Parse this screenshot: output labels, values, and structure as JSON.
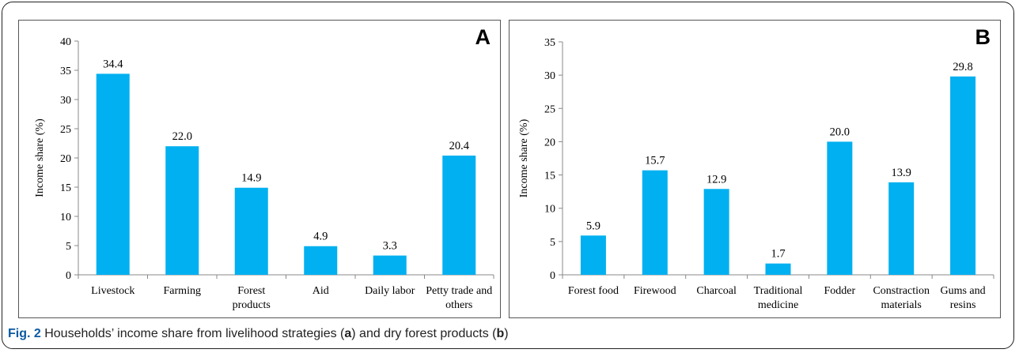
{
  "caption": {
    "label": "Fig. 2",
    "text_1": " Households’ income share from livelihood strategies (",
    "letter_a": "a",
    "text_2": ") and dry forest products (",
    "letter_b": "b",
    "text_3": ")"
  },
  "chart_data": [
    {
      "type": "bar",
      "panel_label": "A",
      "ylabel": "Income share (%)",
      "ylim": [
        0,
        40
      ],
      "yticks": [
        0,
        5,
        10,
        15,
        20,
        25,
        30,
        35,
        40
      ],
      "categories": [
        [
          "Livestock"
        ],
        [
          "Farming"
        ],
        [
          "Forest",
          "products"
        ],
        [
          "Aid"
        ],
        [
          "Daily labor"
        ],
        [
          "Petty trade and",
          "others"
        ]
      ],
      "values": [
        34.4,
        22.0,
        14.9,
        4.9,
        3.3,
        20.4
      ],
      "value_labels": [
        "34.4",
        "22.0",
        "14.9",
        "4.9",
        "3.3",
        "20.4"
      ],
      "bar_color": "#00b0f0"
    },
    {
      "type": "bar",
      "panel_label": "B",
      "ylabel": "Income share (%)",
      "ylim": [
        0,
        35
      ],
      "yticks": [
        0,
        5,
        10,
        15,
        20,
        25,
        30,
        35
      ],
      "categories": [
        [
          "Forest food"
        ],
        [
          "Firewood"
        ],
        [
          "Charcoal"
        ],
        [
          "Traditional",
          "medicine"
        ],
        [
          "Fodder"
        ],
        [
          "Constraction",
          "materials"
        ],
        [
          "Gums and",
          "resins"
        ]
      ],
      "values": [
        5.9,
        15.7,
        12.9,
        1.7,
        20.0,
        13.9,
        29.8
      ],
      "value_labels": [
        "5.9",
        "15.7",
        "12.9",
        "1.7",
        "20.0",
        "13.9",
        "29.8"
      ],
      "bar_color": "#00b0f0"
    }
  ]
}
